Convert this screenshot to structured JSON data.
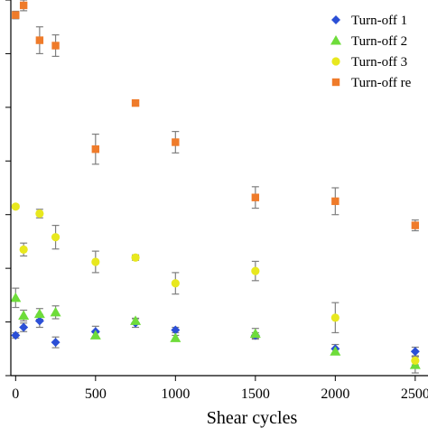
{
  "chart_data": {
    "type": "scatter",
    "xlabel": "Shear cycles",
    "ylabel": "",
    "xticks": [
      0,
      500,
      1000,
      1500,
      2000,
      2500
    ],
    "xlim": [
      -30,
      2580
    ],
    "ylim": [
      0,
      7
    ],
    "yticks": [
      0,
      1,
      2,
      3,
      4,
      5,
      6,
      7
    ],
    "ytick_labels": [
      "",
      "",
      "",
      "",
      "",
      "",
      "",
      ""
    ],
    "grid": false,
    "legend_position": "top-right",
    "series": [
      {
        "name": "Turn-off 1",
        "marker": "diamond",
        "color": "#2b4fd6",
        "points": [
          {
            "x": 0,
            "y": 0.75,
            "err": 0.05
          },
          {
            "x": 50,
            "y": 0.9,
            "err": 0.08
          },
          {
            "x": 150,
            "y": 1.02,
            "err": 0.12
          },
          {
            "x": 250,
            "y": 0.62,
            "err": 0.1
          },
          {
            "x": 500,
            "y": 0.82,
            "err": 0.1
          },
          {
            "x": 750,
            "y": 0.98,
            "err": 0.08
          },
          {
            "x": 1000,
            "y": 0.85,
            "err": 0.05
          },
          {
            "x": 1500,
            "y": 0.75,
            "err": 0.05
          },
          {
            "x": 2000,
            "y": 0.5,
            "err": 0.08
          },
          {
            "x": 2500,
            "y": 0.45,
            "err": 0.08
          }
        ]
      },
      {
        "name": "Turn-off 2",
        "marker": "triangle",
        "color": "#6edc3a",
        "points": [
          {
            "x": 0,
            "y": 1.45,
            "err": 0.18
          },
          {
            "x": 50,
            "y": 1.12,
            "err": 0.1
          },
          {
            "x": 150,
            "y": 1.15,
            "err": 0.1
          },
          {
            "x": 250,
            "y": 1.18,
            "err": 0.12
          },
          {
            "x": 500,
            "y": 0.75,
            "err": 0.05
          },
          {
            "x": 750,
            "y": 1.02,
            "err": 0.05
          },
          {
            "x": 1000,
            "y": 0.7,
            "err": 0.05
          },
          {
            "x": 1500,
            "y": 0.78,
            "err": 0.1
          },
          {
            "x": 2000,
            "y": 0.45,
            "err": 0.05
          },
          {
            "x": 2500,
            "y": 0.2,
            "err": 0.15
          }
        ]
      },
      {
        "name": "Turn-off 3",
        "marker": "circle",
        "color": "#e8e81e",
        "points": [
          {
            "x": 0,
            "y": 3.15,
            "err": 0.03
          },
          {
            "x": 50,
            "y": 2.35,
            "err": 0.12
          },
          {
            "x": 150,
            "y": 3.02,
            "err": 0.08
          },
          {
            "x": 250,
            "y": 2.58,
            "err": 0.22
          },
          {
            "x": 500,
            "y": 2.12,
            "err": 0.2
          },
          {
            "x": 750,
            "y": 2.2,
            "err": 0.05
          },
          {
            "x": 1000,
            "y": 1.72,
            "err": 0.2
          },
          {
            "x": 1500,
            "y": 1.95,
            "err": 0.18
          },
          {
            "x": 2000,
            "y": 1.08,
            "err": 0.28
          },
          {
            "x": 2500,
            "y": 0.28,
            "err": 0.08
          }
        ]
      },
      {
        "name": "Turn-off re",
        "marker": "square",
        "color": "#ef7b2a",
        "points": [
          {
            "x": 0,
            "y": 6.72,
            "err": 0.07
          },
          {
            "x": 50,
            "y": 6.9,
            "err": 0.1
          },
          {
            "x": 150,
            "y": 6.25,
            "err": 0.25
          },
          {
            "x": 250,
            "y": 6.15,
            "err": 0.2
          },
          {
            "x": 500,
            "y": 4.22,
            "err": 0.28
          },
          {
            "x": 750,
            "y": 5.08,
            "err": 0.05
          },
          {
            "x": 1000,
            "y": 4.35,
            "err": 0.2
          },
          {
            "x": 1500,
            "y": 3.32,
            "err": 0.2
          },
          {
            "x": 2000,
            "y": 3.25,
            "err": 0.25
          },
          {
            "x": 2500,
            "y": 2.8,
            "err": 0.1
          }
        ]
      }
    ]
  }
}
